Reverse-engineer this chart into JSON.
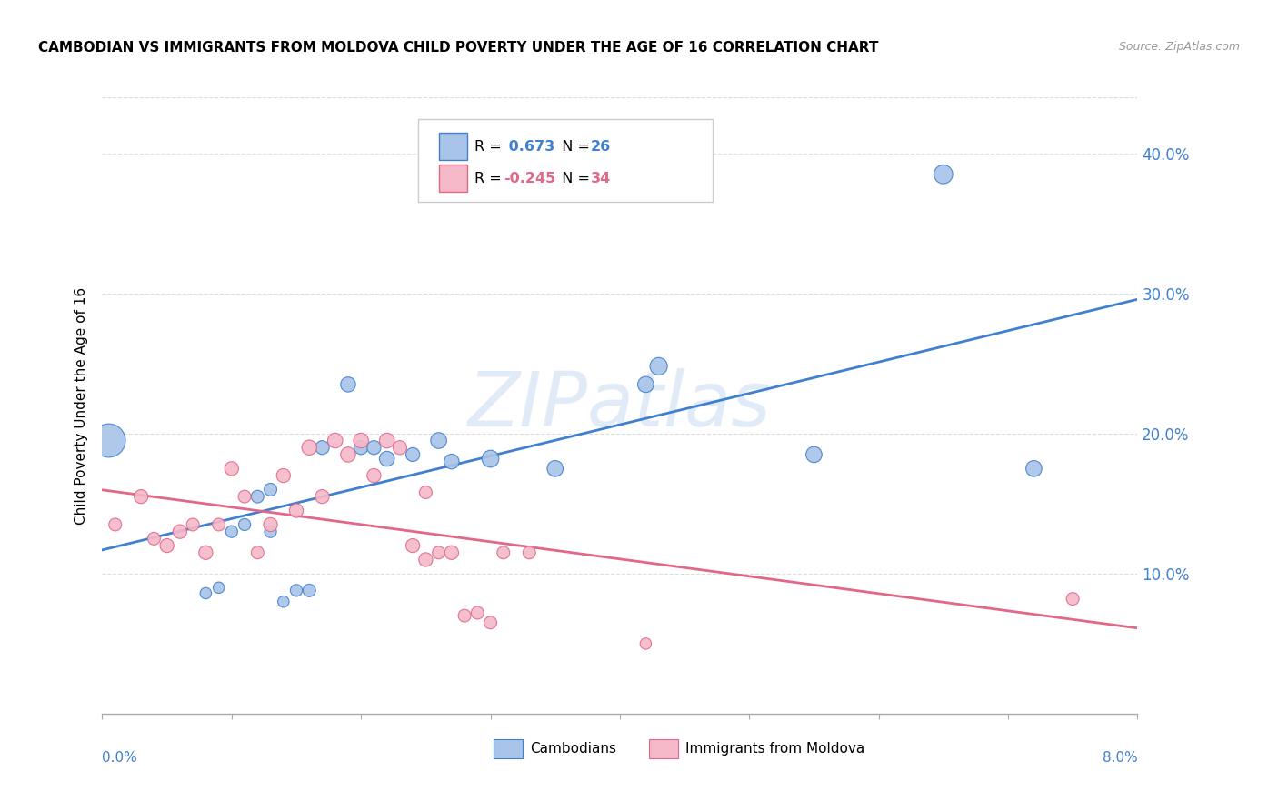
{
  "title": "CAMBODIAN VS IMMIGRANTS FROM MOLDOVA CHILD POVERTY UNDER THE AGE OF 16 CORRELATION CHART",
  "source": "Source: ZipAtlas.com",
  "ylabel": "Child Poverty Under the Age of 16",
  "yticks": [
    0.1,
    0.2,
    0.3,
    0.4
  ],
  "ytick_labels": [
    "10.0%",
    "20.0%",
    "30.0%",
    "40.0%"
  ],
  "xlim": [
    0.0,
    0.08
  ],
  "ylim": [
    0.0,
    0.44
  ],
  "legend_r_cambodian": "0.673",
  "legend_n_cambodian": "26",
  "legend_r_moldova": "-0.245",
  "legend_n_moldova": "34",
  "legend_label_cambodian": "Cambodians",
  "legend_label_moldova": "Immigrants from Moldova",
  "color_cambodian": "#a8c4e8",
  "color_moldova": "#f5b8c8",
  "line_color_cambodian": "#4080d0",
  "line_color_moldova": "#e06888",
  "background_color": "#ffffff",
  "watermark": "ZIPatlas",
  "grid_color": "#dddddd",
  "cambodian_x": [
    0.0005,
    0.008,
    0.009,
    0.01,
    0.011,
    0.012,
    0.013,
    0.013,
    0.014,
    0.015,
    0.016,
    0.017,
    0.019,
    0.02,
    0.021,
    0.022,
    0.024,
    0.026,
    0.027,
    0.03,
    0.035,
    0.042,
    0.043,
    0.055,
    0.065,
    0.072
  ],
  "cambodian_y": [
    0.195,
    0.086,
    0.09,
    0.13,
    0.135,
    0.155,
    0.13,
    0.16,
    0.08,
    0.088,
    0.088,
    0.19,
    0.235,
    0.19,
    0.19,
    0.182,
    0.185,
    0.195,
    0.18,
    0.182,
    0.175,
    0.235,
    0.248,
    0.185,
    0.385,
    0.175
  ],
  "cambodian_size": [
    700,
    80,
    80,
    90,
    90,
    100,
    90,
    100,
    80,
    90,
    100,
    120,
    140,
    120,
    120,
    140,
    120,
    160,
    140,
    180,
    160,
    160,
    190,
    160,
    220,
    160
  ],
  "moldova_x": [
    0.001,
    0.003,
    0.004,
    0.005,
    0.006,
    0.007,
    0.008,
    0.009,
    0.01,
    0.011,
    0.012,
    0.013,
    0.014,
    0.015,
    0.016,
    0.017,
    0.018,
    0.019,
    0.02,
    0.021,
    0.022,
    0.023,
    0.024,
    0.025,
    0.025,
    0.026,
    0.027,
    0.028,
    0.029,
    0.03,
    0.031,
    0.033,
    0.042,
    0.075
  ],
  "moldova_y": [
    0.135,
    0.155,
    0.125,
    0.12,
    0.13,
    0.135,
    0.115,
    0.135,
    0.175,
    0.155,
    0.115,
    0.135,
    0.17,
    0.145,
    0.19,
    0.155,
    0.195,
    0.185,
    0.195,
    0.17,
    0.195,
    0.19,
    0.12,
    0.11,
    0.158,
    0.115,
    0.115,
    0.07,
    0.072,
    0.065,
    0.115,
    0.115,
    0.05,
    0.082
  ],
  "moldova_size": [
    100,
    120,
    100,
    120,
    120,
    100,
    120,
    100,
    120,
    100,
    100,
    120,
    120,
    120,
    140,
    120,
    140,
    140,
    140,
    120,
    140,
    120,
    120,
    120,
    100,
    100,
    120,
    100,
    100,
    100,
    100,
    100,
    80,
    100
  ]
}
